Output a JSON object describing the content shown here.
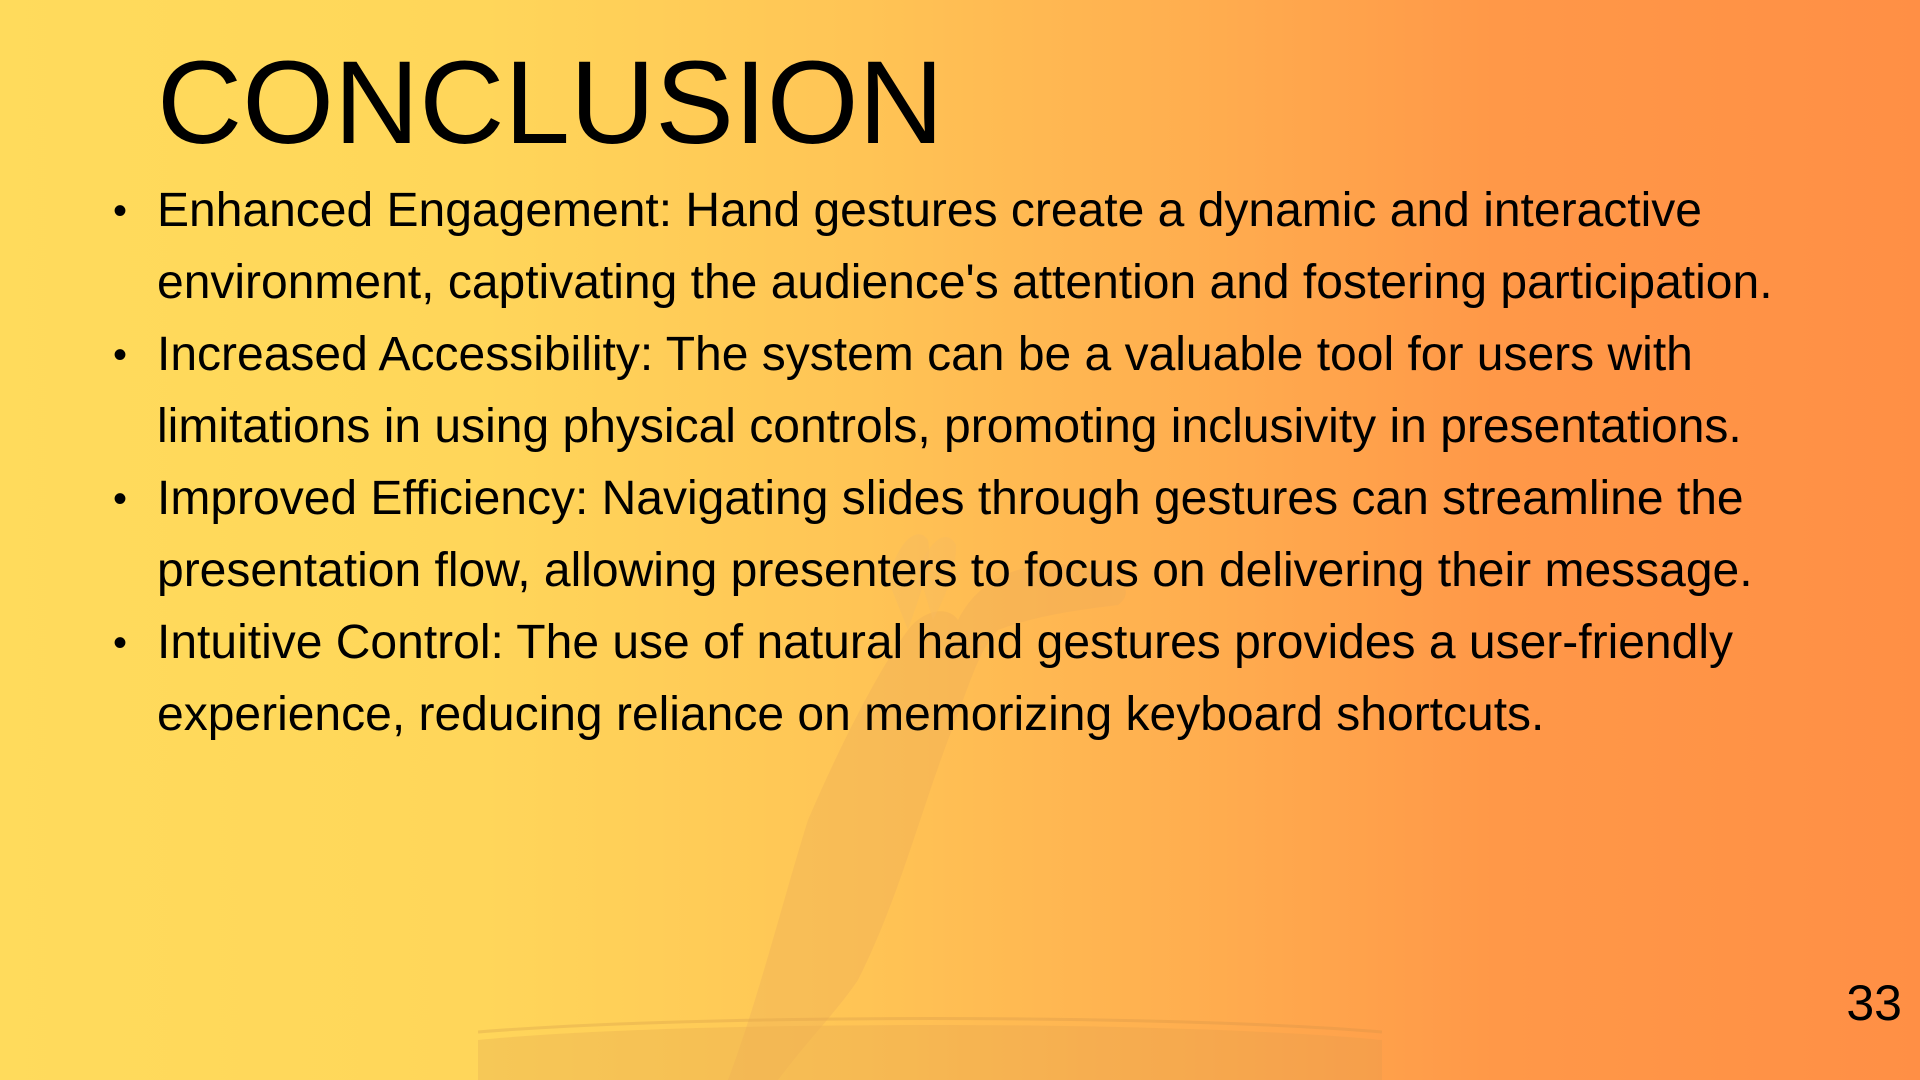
{
  "slide": {
    "title": "CONCLUSION",
    "bullets": [
      {
        "text": "Enhanced Engagement: Hand gestures create a dynamic and interactive environment, captivating the audience's attention and fostering participation."
      },
      {
        "text": "Increased Accessibility: The system can be a valuable tool for users with limitations in using physical controls, promoting inclusivity in presentations."
      },
      {
        "text": "Improved Efficiency: Navigating slides through gestures can streamline the presentation flow, allowing presenters to focus on delivering their message."
      },
      {
        "text": "Intuitive Control: The use of natural hand gestures provides a user-friendly experience, reducing reliance on memorizing keyboard shortcuts."
      }
    ],
    "page_number": "33"
  },
  "colors": {
    "background_left": "#ffdb5c",
    "background_right": "#ff8f45",
    "text": "#000000"
  },
  "icons": {
    "bullet": "bullet-dot-icon"
  }
}
